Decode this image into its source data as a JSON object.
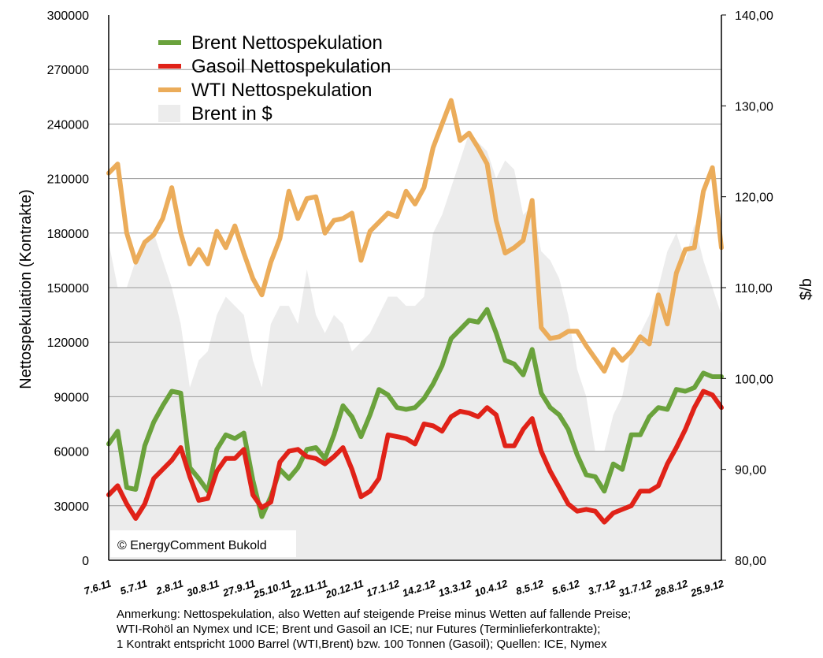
{
  "chart_data": {
    "type": "line",
    "ylabel": "Nettospekulation (Kontrakte)",
    "y2label": "$/b",
    "ylim": [
      0,
      300000
    ],
    "y2lim": [
      80,
      140
    ],
    "yticks": [
      "0",
      "30000",
      "60000",
      "90000",
      "120000",
      "150000",
      "180000",
      "210000",
      "240000",
      "270000",
      "300000"
    ],
    "y2ticks": [
      "80,00",
      "90,00",
      "100,00",
      "110,00",
      "120,00",
      "130,00",
      "140,00"
    ],
    "x_labels": [
      "7.6.11",
      "5.7.11",
      "2.8.11",
      "30.8.11",
      "27.9.11",
      "25.10.11",
      "22.11.11",
      "20.12.11",
      "17.1.12",
      "14.2.12",
      "13.3.12",
      "10.4.12",
      "8.5.12",
      "5.6.12",
      "3.7.12",
      "31.7.12",
      "28.8.12",
      "25.9.12"
    ],
    "x_label_index": [
      0,
      4,
      8,
      12,
      16,
      20,
      24,
      28,
      32,
      36,
      40,
      44,
      48,
      52,
      56,
      60,
      64,
      68
    ],
    "legend_position": "top-left",
    "copyright": "© EnergyComment Bukold",
    "series": [
      {
        "name": "Brent Nettospekulation",
        "color": "#6aa23c",
        "axis": "left",
        "values": [
          64000,
          71000,
          40000,
          39000,
          63000,
          76000,
          85000,
          93000,
          92000,
          51000,
          45000,
          38000,
          61000,
          69000,
          67000,
          70000,
          44000,
          24000,
          35000,
          50000,
          45000,
          51000,
          61000,
          62000,
          56000,
          69000,
          85000,
          79000,
          68000,
          80000,
          94000,
          91000,
          84000,
          83000,
          84000,
          89000,
          97000,
          107000,
          122000,
          127000,
          132000,
          131000,
          138000,
          125000,
          110000,
          108000,
          102000,
          116000,
          92000,
          84000,
          80000,
          72000,
          58000,
          47000,
          46000,
          38000,
          53000,
          50000,
          69000,
          69000,
          79000,
          84000,
          83000,
          94000,
          93000,
          95000,
          103000,
          101000,
          101000
        ]
      },
      {
        "name": "Gasoil Nettospekulation",
        "color": "#e02218",
        "axis": "left",
        "values": [
          36000,
          41000,
          31000,
          23000,
          31000,
          45000,
          50000,
          55000,
          62000,
          46000,
          33000,
          34000,
          49000,
          56000,
          56000,
          61000,
          36000,
          29000,
          32000,
          54000,
          60000,
          61000,
          57000,
          56000,
          53000,
          57000,
          62000,
          50000,
          35000,
          38000,
          45000,
          69000,
          68000,
          67000,
          64000,
          75000,
          74000,
          71000,
          79000,
          82000,
          81000,
          79000,
          84000,
          80000,
          63000,
          63000,
          72000,
          78000,
          60000,
          49000,
          40000,
          31000,
          27000,
          28000,
          27000,
          21000,
          26000,
          28000,
          30000,
          38000,
          38000,
          41000,
          53000,
          62000,
          72000,
          84000,
          93000,
          91000,
          84000
        ]
      },
      {
        "name": "WTI Nettospekulation",
        "color": "#ebac5a",
        "axis": "left",
        "values": [
          213000,
          218000,
          180000,
          164000,
          175000,
          179000,
          188000,
          205000,
          180000,
          163000,
          171000,
          163000,
          181000,
          172000,
          184000,
          169000,
          155000,
          146000,
          164000,
          177000,
          203000,
          188000,
          199000,
          200000,
          180000,
          187000,
          188000,
          191000,
          165000,
          181000,
          186000,
          191000,
          189000,
          203000,
          196000,
          205000,
          227000,
          240000,
          253000,
          231000,
          235000,
          227000,
          218000,
          187000,
          169000,
          172000,
          176000,
          198000,
          128000,
          122000,
          123000,
          126000,
          126000,
          118000,
          111000,
          104000,
          116000,
          110000,
          115000,
          123000,
          119000,
          146000,
          130000,
          158000,
          171000,
          172000,
          203000,
          216000,
          172000
        ]
      },
      {
        "name": "Brent in $",
        "color": "#ececec",
        "axis": "right",
        "type": "area",
        "values": [
          115,
          110,
          110,
          113,
          115,
          116,
          113,
          110,
          106,
          99,
          102,
          103,
          107,
          109,
          108,
          107,
          102,
          99,
          106,
          108,
          108,
          106,
          112,
          107,
          105,
          107,
          106,
          103,
          104,
          105,
          107,
          109,
          109,
          108,
          108,
          109,
          116,
          118,
          121,
          124,
          127,
          126,
          125,
          122,
          124,
          123,
          118,
          119,
          114,
          113,
          111,
          107,
          101,
          98,
          92,
          92,
          96,
          98,
          103,
          105,
          107,
          110,
          114,
          116,
          113,
          117,
          113,
          110,
          107
        ]
      }
    ]
  },
  "note": {
    "lines": [
      "Anmerkung: Nettospekulation, also Wetten auf steigende Preise minus Wetten auf fallende Preise;",
      "WTI-Rohöl an Nymex und ICE; Brent und Gasoil an ICE; nur Futures (Terminlieferkontrakte);",
      "1 Kontrakt entspricht 1000 Barrel (WTI,Brent) bzw. 100 Tonnen (Gasoil); Quellen: ICE, Nymex"
    ]
  }
}
